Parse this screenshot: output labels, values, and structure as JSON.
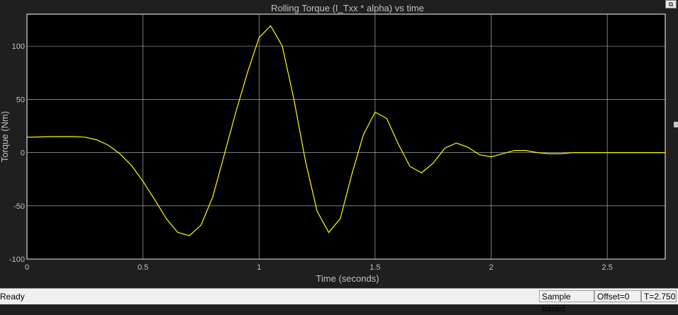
{
  "status": {
    "text": "Ready",
    "mode": "Sample based",
    "offset": "Offset=0",
    "time": "T=2.750"
  },
  "icons": {
    "restore": "restore-window-icon"
  },
  "colors": {
    "background": "#000000",
    "frame": "#1f1f1f",
    "grid": "#c8c8c8",
    "line": "#ffff00",
    "text": "#c0c0c0"
  },
  "chart_data": {
    "type": "line",
    "title": "Rolling Torque (I_Txx * alpha) vs time",
    "xlabel": "Time (seconds)",
    "ylabel": "Torque (Nm)",
    "xlim": [
      0,
      2.75
    ],
    "ylim": [
      -100,
      130
    ],
    "xticks": [
      0,
      0.5,
      1,
      1.5,
      2,
      2.5
    ],
    "xtick_labels": [
      "0",
      "0.5",
      "1",
      "1.5",
      "2",
      "2.5"
    ],
    "yticks": [
      -100,
      -50,
      0,
      50,
      100
    ],
    "ytick_labels": [
      "-100",
      "-50",
      "0",
      "50",
      "100"
    ],
    "grid": true,
    "series": [
      {
        "x": [
          0,
          0.05,
          0.1,
          0.15,
          0.2,
          0.25,
          0.3,
          0.35,
          0.4,
          0.45,
          0.5,
          0.55,
          0.6,
          0.65,
          0.7,
          0.75,
          0.8,
          0.85,
          0.9,
          0.95,
          1.0,
          1.05,
          1.1,
          1.15,
          1.2,
          1.25,
          1.3,
          1.35,
          1.4,
          1.45,
          1.5,
          1.55,
          1.6,
          1.65,
          1.7,
          1.75,
          1.8,
          1.85,
          1.9,
          1.95,
          2.0,
          2.05,
          2.1,
          2.15,
          2.2,
          2.25,
          2.3,
          2.35,
          2.4,
          2.45,
          2.5,
          2.55,
          2.6,
          2.65,
          2.7,
          2.75
        ],
        "y": [
          14.5,
          14.7,
          15,
          15,
          15,
          14.5,
          12,
          7,
          -1,
          -12,
          -27,
          -44,
          -62,
          -75,
          -78,
          -68,
          -42,
          -2,
          38,
          75,
          108,
          119,
          100,
          50,
          -8,
          -55,
          -75,
          -62,
          -20,
          17,
          38,
          32,
          8,
          -13,
          -19,
          -10,
          4,
          9,
          5,
          -2,
          -4,
          -1,
          2,
          2,
          0,
          -1,
          -1,
          0,
          0,
          0,
          0,
          0,
          0,
          0,
          0,
          0
        ]
      }
    ]
  }
}
